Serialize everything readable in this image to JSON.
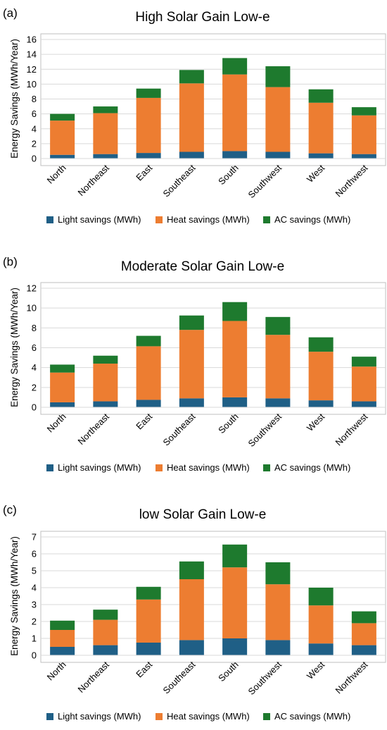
{
  "colors": {
    "light": "#1f5f86",
    "heat": "#ed7d31",
    "ac": "#1e7a2e",
    "grid": "#d9d9d9",
    "frame": "#bfbfbf"
  },
  "chart_data": [
    {
      "type": "bar",
      "stacked": true,
      "panel_label": "(a)",
      "title": "High Solar Gain Low-e",
      "ylabel": "Energy Savings (MWh/Year)",
      "ylim": [
        0,
        16
      ],
      "yticks": [
        "0",
        "2",
        "4",
        "6",
        "8",
        "10",
        "12",
        "14",
        "16"
      ],
      "categories": [
        "North",
        "Northeast",
        "East",
        "Southeast",
        "South",
        "Southwest",
        "West",
        "Northwest"
      ],
      "series": [
        {
          "name": "Light savings (MWh)",
          "color": "light",
          "values": [
            0.5,
            0.6,
            0.75,
            0.9,
            1.0,
            0.9,
            0.7,
            0.6
          ]
        },
        {
          "name": "Heat savings (MWh)",
          "color": "heat",
          "values": [
            4.6,
            5.5,
            7.4,
            9.2,
            10.3,
            8.7,
            6.8,
            5.2
          ]
        },
        {
          "name": "AC savings (MWh)",
          "color": "ac",
          "values": [
            0.9,
            0.9,
            1.25,
            1.8,
            2.2,
            2.8,
            1.8,
            1.1
          ]
        }
      ],
      "legend": "bottom",
      "grid": true
    },
    {
      "type": "bar",
      "stacked": true,
      "panel_label": "(b)",
      "title": "Moderate Solar Gain Low-e",
      "ylabel": "Energy Savings (MWh/Year)",
      "ylim": [
        0,
        12
      ],
      "yticks": [
        "0",
        "2",
        "4",
        "6",
        "8",
        "10",
        "12"
      ],
      "categories": [
        "North",
        "Northeast",
        "East",
        "Southeast",
        "South",
        "Southwest",
        "West",
        "Northwest"
      ],
      "series": [
        {
          "name": "Light savings (MWh)",
          "color": "light",
          "values": [
            0.5,
            0.6,
            0.75,
            0.9,
            1.0,
            0.9,
            0.7,
            0.6
          ]
        },
        {
          "name": "Heat savings (MWh)",
          "color": "heat",
          "values": [
            3.0,
            3.8,
            5.4,
            6.9,
            7.7,
            6.4,
            4.9,
            3.5
          ]
        },
        {
          "name": "AC savings (MWh)",
          "color": "ac",
          "values": [
            0.8,
            0.8,
            1.05,
            1.45,
            1.9,
            1.8,
            1.45,
            1.0
          ]
        }
      ],
      "legend": "bottom",
      "grid": true
    },
    {
      "type": "bar",
      "stacked": true,
      "panel_label": "(c)",
      "title": "low Solar Gain Low-e",
      "ylabel": "Energy Savings (MWh/Year)",
      "ylim": [
        0,
        7
      ],
      "yticks": [
        "0",
        "1",
        "2",
        "3",
        "4",
        "5",
        "6",
        "7"
      ],
      "categories": [
        "North",
        "Northeast",
        "East",
        "Southeast",
        "South",
        "Southwest",
        "West",
        "Northwest"
      ],
      "series": [
        {
          "name": "Light savings (MWh)",
          "color": "light",
          "values": [
            0.5,
            0.6,
            0.75,
            0.9,
            1.0,
            0.9,
            0.7,
            0.6
          ]
        },
        {
          "name": "Heat savings (MWh)",
          "color": "heat",
          "values": [
            1.0,
            1.5,
            2.55,
            3.6,
            4.2,
            3.3,
            2.25,
            1.3
          ]
        },
        {
          "name": "AC savings (MWh)",
          "color": "ac",
          "values": [
            0.55,
            0.6,
            0.75,
            1.05,
            1.35,
            1.3,
            1.05,
            0.7
          ]
        }
      ],
      "legend": "bottom",
      "grid": true
    }
  ]
}
